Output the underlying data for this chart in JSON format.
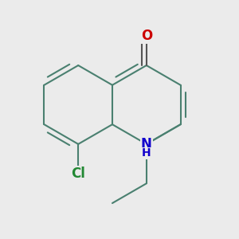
{
  "background_color": "#ebebeb",
  "bond_color": "#4a8070",
  "bond_width": 1.5,
  "atom_labels": {
    "O": {
      "color": "#cc0000",
      "fontsize": 12,
      "fontweight": "bold"
    },
    "N": {
      "color": "#1100cc",
      "fontsize": 12,
      "fontweight": "bold"
    },
    "H": {
      "color": "#1100cc",
      "fontsize": 10,
      "fontweight": "bold"
    },
    "Cl": {
      "color": "#228833",
      "fontsize": 12,
      "fontweight": "bold"
    }
  }
}
